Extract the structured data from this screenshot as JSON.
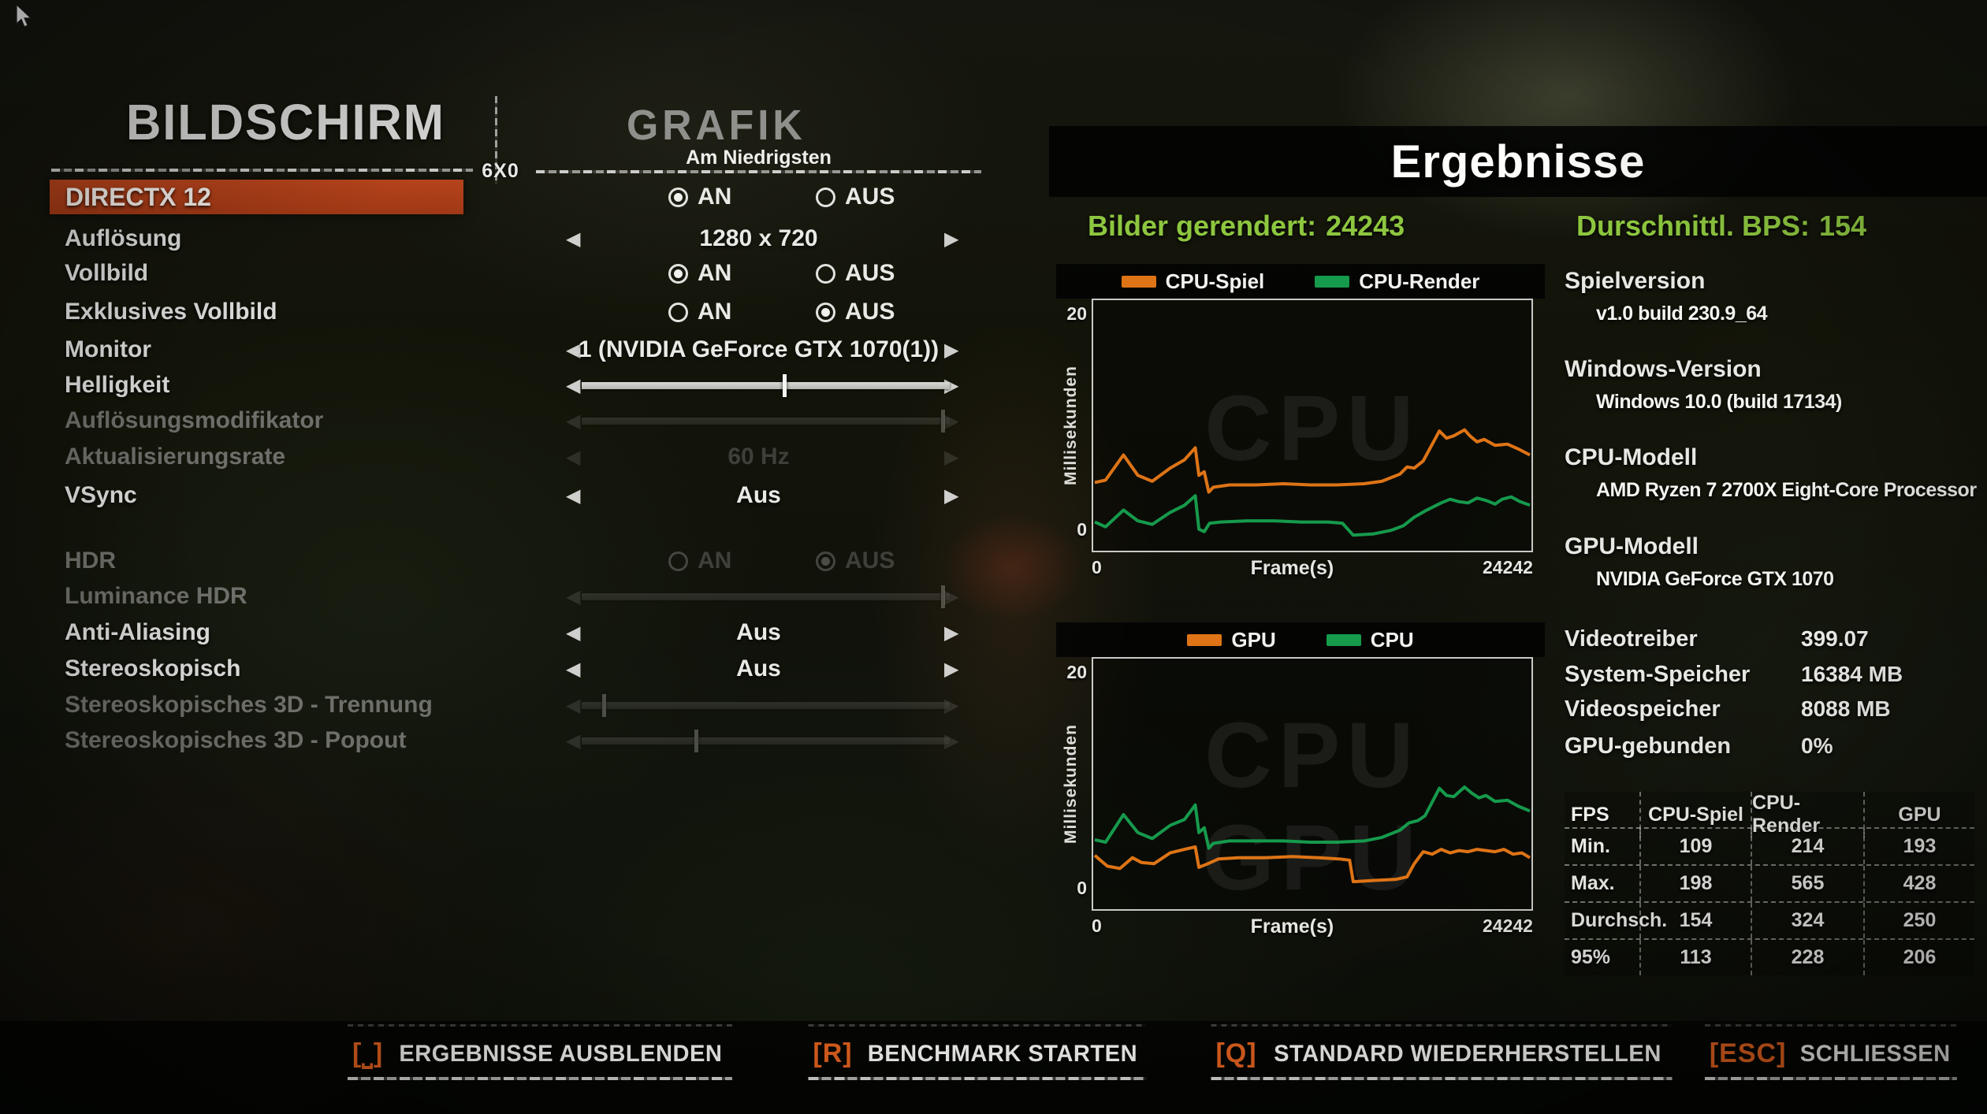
{
  "colors": {
    "orange": "#e2611f",
    "lime": "#8dc63f",
    "menu_red": "#b5431c",
    "chart_orange": "#de7416",
    "chart_green": "#169a4c"
  },
  "left_menu": {
    "title": "BILDSCHIRM",
    "badge": "6X0",
    "items": [
      {
        "label": "DIRECTX 12",
        "state": "selected"
      },
      {
        "label": "Auflösung",
        "state": "normal"
      },
      {
        "label": "Vollbild",
        "state": "normal"
      },
      {
        "label": "Exklusives Vollbild",
        "state": "normal"
      },
      {
        "label": "Monitor",
        "state": "normal"
      },
      {
        "label": "Helligkeit",
        "state": "normal"
      },
      {
        "label": "Auflösungsmodifikator",
        "state": "disabled"
      },
      {
        "label": "Aktualisierungsrate",
        "state": "disabled"
      },
      {
        "label": "VSync",
        "state": "normal"
      },
      {
        "label": "HDR",
        "state": "disabled"
      },
      {
        "label": "Luminance HDR",
        "state": "disabled"
      },
      {
        "label": "Anti-Aliasing",
        "state": "normal"
      },
      {
        "label": "Stereoskopisch",
        "state": "normal"
      },
      {
        "label": "Stereoskopisches 3D - Trennung",
        "state": "disabled"
      },
      {
        "label": "Stereoskopisches 3D - Popout",
        "state": "disabled"
      }
    ]
  },
  "grafik": {
    "title": "GRAFIK",
    "preset": "Am Niedrigsten",
    "on_label": "AN",
    "off_label": "AUS",
    "controls": [
      {
        "type": "radio",
        "setting": "directx-12",
        "selected": "AN",
        "disabled": false
      },
      {
        "type": "stepper",
        "setting": "aufloesung",
        "value": "1280 x 720",
        "disabled": false
      },
      {
        "type": "radio",
        "setting": "vollbild",
        "selected": "AN",
        "disabled": false
      },
      {
        "type": "radio",
        "setting": "exklusives-vollbild",
        "selected": "AUS",
        "disabled": false
      },
      {
        "type": "stepper",
        "setting": "monitor",
        "value": "1 (NVIDIA GeForce GTX 1070(1))",
        "disabled": false
      },
      {
        "type": "slider",
        "setting": "helligkeit",
        "value": 55,
        "disabled": false
      },
      {
        "type": "slider",
        "setting": "aufloesungsmodifikator",
        "value": 98,
        "disabled": true
      },
      {
        "type": "stepper",
        "setting": "aktualisierungsrate",
        "value": "60 Hz",
        "disabled": true
      },
      {
        "type": "stepper",
        "setting": "vsync",
        "value": "Aus",
        "disabled": false
      },
      {
        "type": "radio",
        "setting": "hdr",
        "selected": "AUS",
        "disabled": true
      },
      {
        "type": "slider",
        "setting": "luminance-hdr",
        "value": 98,
        "disabled": true
      },
      {
        "type": "stepper",
        "setting": "anti-aliasing",
        "value": "Aus",
        "disabled": false
      },
      {
        "type": "stepper",
        "setting": "stereoskopisch",
        "value": "Aus",
        "disabled": false
      },
      {
        "type": "slider",
        "setting": "stereo-3d-trennung",
        "value": 6,
        "disabled": true
      },
      {
        "type": "slider",
        "setting": "stereo-3d-popout",
        "value": 31,
        "disabled": true
      }
    ]
  },
  "results": {
    "title": "Ergebnisse",
    "frames_label": "Bilder gerendert:",
    "frames_value": "24243",
    "bps_label": "Durschnittl. BPS:",
    "bps_value": "154"
  },
  "chart_data": [
    {
      "type": "line",
      "name": "cpu-frametime-chart",
      "ylabel": "Millisekunden",
      "xlabel": "Frame(s)",
      "ylim": [
        0,
        20
      ],
      "xlim": [
        0,
        24242
      ],
      "yticks": [
        "20",
        "0"
      ],
      "xticks": [
        "0",
        "24242"
      ],
      "watermarks": [
        "CPU"
      ],
      "legend_position": "top",
      "grid": false,
      "series": [
        {
          "name": "CPU-Spiel",
          "color": "#de7416",
          "points": [
            [
              0,
              5.3
            ],
            [
              600,
              5.5
            ],
            [
              1600,
              7.6
            ],
            [
              2400,
              5.9
            ],
            [
              3200,
              5.4
            ],
            [
              4200,
              6.5
            ],
            [
              5000,
              7.2
            ],
            [
              5600,
              8.2
            ],
            [
              5800,
              5.9
            ],
            [
              6100,
              6.2
            ],
            [
              6350,
              4.5
            ],
            [
              6600,
              4.9
            ],
            [
              7500,
              5.1
            ],
            [
              9000,
              5.1
            ],
            [
              10500,
              5.2
            ],
            [
              12000,
              5.1
            ],
            [
              13500,
              5.1
            ],
            [
              15000,
              5.2
            ],
            [
              16000,
              5.4
            ],
            [
              17000,
              6.0
            ],
            [
              17400,
              6.6
            ],
            [
              17800,
              6.5
            ],
            [
              18300,
              7.1
            ],
            [
              19200,
              9.6
            ],
            [
              19600,
              9.0
            ],
            [
              20000,
              9.2
            ],
            [
              20600,
              9.7
            ],
            [
              20900,
              9.2
            ],
            [
              21300,
              8.7
            ],
            [
              21700,
              8.9
            ],
            [
              22300,
              8.4
            ],
            [
              23000,
              8.5
            ],
            [
              23600,
              8.1
            ],
            [
              24242,
              7.6
            ]
          ]
        },
        {
          "name": "CPU-Render",
          "color": "#169a4c",
          "points": [
            [
              0,
              2.0
            ],
            [
              600,
              1.6
            ],
            [
              1600,
              3.0
            ],
            [
              2400,
              2.1
            ],
            [
              3200,
              1.8
            ],
            [
              4200,
              2.8
            ],
            [
              5000,
              3.4
            ],
            [
              5600,
              4.2
            ],
            [
              5800,
              1.4
            ],
            [
              6100,
              1.2
            ],
            [
              6400,
              1.9
            ],
            [
              7000,
              2.0
            ],
            [
              8500,
              2.1
            ],
            [
              10000,
              2.1
            ],
            [
              11500,
              2.0
            ],
            [
              13000,
              2.0
            ],
            [
              13800,
              1.9
            ],
            [
              14400,
              0.9
            ],
            [
              15500,
              1.0
            ],
            [
              16500,
              1.3
            ],
            [
              17200,
              1.7
            ],
            [
              17800,
              2.4
            ],
            [
              18500,
              3.0
            ],
            [
              19300,
              3.6
            ],
            [
              19800,
              3.9
            ],
            [
              20300,
              3.7
            ],
            [
              20800,
              3.6
            ],
            [
              21300,
              4.0
            ],
            [
              21800,
              3.8
            ],
            [
              22300,
              3.5
            ],
            [
              22700,
              3.9
            ],
            [
              23200,
              4.1
            ],
            [
              23700,
              3.7
            ],
            [
              24242,
              3.4
            ]
          ]
        }
      ]
    },
    {
      "type": "line",
      "name": "gpu-frametime-chart",
      "ylabel": "Millisekunden",
      "xlabel": "Frame(s)",
      "ylim": [
        0,
        20
      ],
      "xlim": [
        0,
        24242
      ],
      "yticks": [
        "20",
        "0"
      ],
      "xticks": [
        "0",
        "24242"
      ],
      "watermarks": [
        "CPU",
        "GPU"
      ],
      "legend_position": "top",
      "grid": false,
      "series": [
        {
          "name": "GPU",
          "color": "#de7416",
          "points": [
            [
              0,
              4.1
            ],
            [
              700,
              3.2
            ],
            [
              1400,
              3.0
            ],
            [
              2100,
              3.9
            ],
            [
              2600,
              3.5
            ],
            [
              3300,
              3.4
            ],
            [
              4200,
              4.3
            ],
            [
              5000,
              4.6
            ],
            [
              5600,
              4.8
            ],
            [
              5800,
              3.1
            ],
            [
              6300,
              3.4
            ],
            [
              6900,
              3.8
            ],
            [
              8000,
              3.9
            ],
            [
              9500,
              3.9
            ],
            [
              11000,
              4.0
            ],
            [
              12500,
              3.9
            ],
            [
              13600,
              3.8
            ],
            [
              14200,
              3.7
            ],
            [
              14400,
              1.9
            ],
            [
              15500,
              2.0
            ],
            [
              16800,
              2.1
            ],
            [
              17400,
              2.3
            ],
            [
              17800,
              3.4
            ],
            [
              18300,
              4.4
            ],
            [
              18800,
              4.2
            ],
            [
              19300,
              4.6
            ],
            [
              19800,
              4.3
            ],
            [
              20300,
              4.5
            ],
            [
              20800,
              4.4
            ],
            [
              21300,
              4.6
            ],
            [
              21800,
              4.5
            ],
            [
              22300,
              4.4
            ],
            [
              22800,
              4.6
            ],
            [
              23300,
              4.2
            ],
            [
              23800,
              4.3
            ],
            [
              24242,
              3.9
            ]
          ]
        },
        {
          "name": "CPU",
          "color": "#169a4c",
          "points": [
            [
              0,
              5.4
            ],
            [
              600,
              5.2
            ],
            [
              1600,
              7.5
            ],
            [
              2400,
              6.0
            ],
            [
              3200,
              5.5
            ],
            [
              4200,
              6.6
            ],
            [
              5000,
              7.1
            ],
            [
              5600,
              8.3
            ],
            [
              5800,
              6.0
            ],
            [
              6100,
              6.4
            ],
            [
              6350,
              4.7
            ],
            [
              6600,
              5.1
            ],
            [
              7500,
              5.3
            ],
            [
              9000,
              5.3
            ],
            [
              10500,
              5.3
            ],
            [
              12000,
              5.2
            ],
            [
              13500,
              5.2
            ],
            [
              15000,
              5.3
            ],
            [
              16000,
              5.6
            ],
            [
              17000,
              6.2
            ],
            [
              17500,
              6.8
            ],
            [
              18000,
              7.0
            ],
            [
              18400,
              7.4
            ],
            [
              19200,
              9.7
            ],
            [
              19600,
              9.1
            ],
            [
              20000,
              9.0
            ],
            [
              20600,
              9.8
            ],
            [
              21000,
              9.3
            ],
            [
              21400,
              8.9
            ],
            [
              21800,
              9.1
            ],
            [
              22300,
              8.6
            ],
            [
              23000,
              8.7
            ],
            [
              23600,
              8.2
            ],
            [
              24242,
              7.8
            ]
          ]
        }
      ]
    }
  ],
  "sysinfo": {
    "blocks": [
      {
        "label": "Spielversion",
        "value": "v1.0 build 230.9_64"
      },
      {
        "label": "Windows-Version",
        "value": "Windows 10.0 (build 17134)"
      },
      {
        "label": "CPU-Modell",
        "value": "AMD Ryzen 7 2700X Eight-Core Processor"
      },
      {
        "label": "GPU-Modell",
        "value": "NVIDIA GeForce GTX 1070"
      }
    ],
    "rows": [
      {
        "label": "Videotreiber",
        "value": "399.07"
      },
      {
        "label": "System-Speicher",
        "value": "16384 MB"
      },
      {
        "label": "Videospeicher",
        "value": "8088 MB"
      },
      {
        "label": "GPU-gebunden",
        "value": "0%"
      }
    ]
  },
  "fps_table": {
    "headers": [
      "FPS",
      "CPU-Spiel",
      "CPU-Render",
      "GPU"
    ],
    "rows": [
      {
        "label": "Min.",
        "values": [
          "109",
          "214",
          "193"
        ]
      },
      {
        "label": "Max.",
        "values": [
          "198",
          "565",
          "428"
        ]
      },
      {
        "label": "Durchsch.",
        "values": [
          "154",
          "324",
          "250"
        ]
      },
      {
        "label": "95%",
        "values": [
          "113",
          "228",
          "206"
        ]
      }
    ]
  },
  "hotkeys": [
    {
      "key": "⎵",
      "label": "ERGEBNISSE AUSBLENDEN",
      "action": "hide-results"
    },
    {
      "key": "R",
      "label": "BENCHMARK STARTEN",
      "action": "start-benchmark"
    },
    {
      "key": "Q",
      "label": "STANDARD WIEDERHERSTELLEN",
      "action": "restore-defaults"
    },
    {
      "key": "ESC",
      "label": "SCHLIESSEN",
      "action": "close"
    }
  ]
}
